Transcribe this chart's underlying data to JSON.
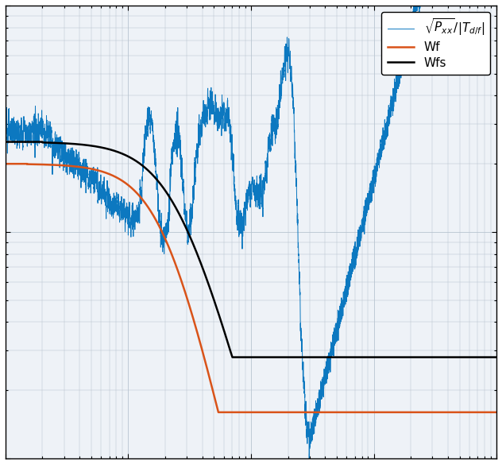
{
  "xlim": [
    0.1,
    1000
  ],
  "ylim": [
    0.01,
    1.0
  ],
  "line_blue_color": "#0072BD",
  "line_orange_color": "#D95319",
  "line_black_color": "#000000",
  "legend_labels": [
    "$\\sqrt{P_{xx}}/|T_{d/f}|$",
    "Wf",
    "Wfs"
  ],
  "grid_color": "#b8c4d0",
  "background_color": "#eef2f7",
  "figsize": [
    6.32,
    5.84
  ],
  "dpi": 100
}
